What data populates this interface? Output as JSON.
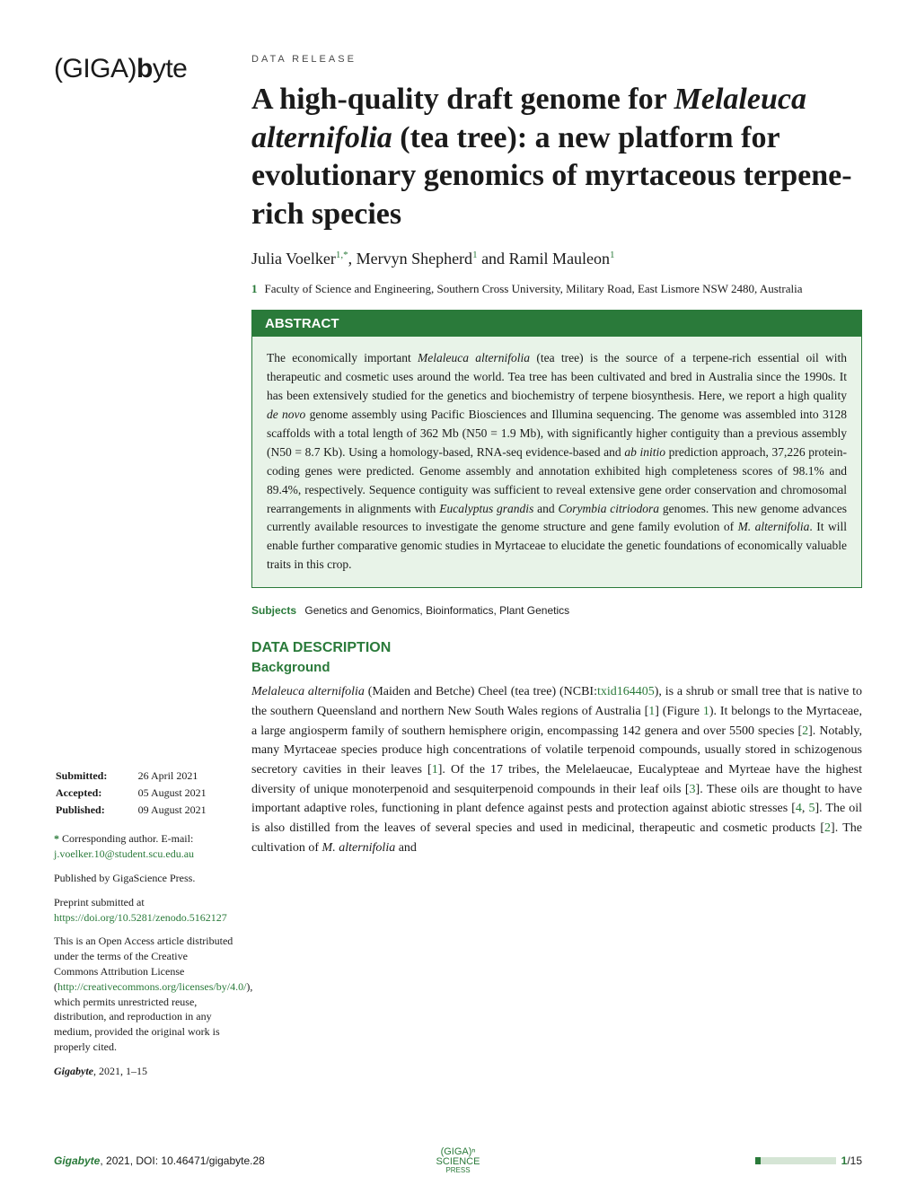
{
  "journal_logo": {
    "part1": "(GIGA)",
    "part2": "b",
    "part3": "yte"
  },
  "article_type": "DATA RELEASE",
  "title": {
    "line1": "A high-quality draft genome for ",
    "italic1": "Melaleuca alternifolia",
    "line1_end": " (tea tree): a new platform for evolutionary genomics of myrtaceous terpene-rich species"
  },
  "authors": {
    "a1": "Julia Voelker",
    "a1_sup": "1,*",
    "a2": "Mervyn Shepherd",
    "a2_sup": "1",
    "a3": "Ramil Mauleon",
    "a3_sup": "1"
  },
  "affiliation": {
    "num": "1",
    "text": "Faculty of Science and Engineering, Southern Cross University, Military Road, East Lismore NSW 2480, Australia"
  },
  "abstract": {
    "header": "ABSTRACT",
    "text_parts": [
      "The economically important ",
      "Melaleuca alternifolia",
      " (tea tree) is the source of a terpene-rich essential oil with therapeutic and cosmetic uses around the world. Tea tree has been cultivated and bred in Australia since the 1990s. It has been extensively studied for the genetics and biochemistry of terpene biosynthesis. Here, we report a high quality ",
      "de novo",
      " genome assembly using Pacific Biosciences and Illumina sequencing. The genome was assembled into 3128 scaffolds with a total length of 362 Mb (N50 = 1.9 Mb), with significantly higher contiguity than a previous assembly (N50 = 8.7 Kb). Using a homology-based, RNA-seq evidence-based and ",
      "ab initio",
      " prediction approach, 37,226 protein-coding genes were predicted. Genome assembly and annotation exhibited high completeness scores of 98.1% and 89.4%, respectively. Sequence contiguity was sufficient to reveal extensive gene order conservation and chromosomal rearrangements in alignments with ",
      "Eucalyptus grandis",
      " and ",
      "Corymbia citriodora",
      " genomes. This new genome advances currently available resources to investigate the genome structure and gene family evolution of ",
      "M. alternifolia",
      ". It will enable further comparative genomic studies in Myrtaceae to elucidate the genetic foundations of economically valuable traits in this crop."
    ]
  },
  "subjects": {
    "label": "Subjects",
    "value": "Genetics and Genomics, Bioinformatics, Plant Genetics"
  },
  "dates": {
    "submitted_label": "Submitted:",
    "submitted": "26 April 2021",
    "accepted_label": "Accepted:",
    "accepted": "05 August 2021",
    "published_label": "Published:",
    "published": "09 August 2021"
  },
  "corresponding": {
    "star": "*",
    "text": "Corresponding author. E-mail:",
    "email": "j.voelker.10@student.scu.edu.au"
  },
  "published_by": "Published by GigaScience Press.",
  "preprint": {
    "text": "Preprint submitted at ",
    "link": "https://doi.org/10.5281/zenodo.5162127"
  },
  "license": {
    "pre": "This is an Open Access article distributed under the terms of the Creative Commons Attribution License (",
    "link": "http://creativecommons.org/licenses/by/4.0/",
    "post": "), which permits unrestricted reuse, distribution, and reproduction in any medium, provided the original work is properly cited."
  },
  "citation": {
    "journal": "Gigabyte",
    "rest": ", 2021, 1–15"
  },
  "section1": "DATA DESCRIPTION",
  "subsection1": "Background",
  "body": {
    "parts": [
      "Melaleuca alternifolia",
      " (Maiden and Betche) Cheel (tea tree) (NCBI:",
      "txid164405",
      "), is a shrub or small tree that is native to the southern Queensland and northern New South Wales regions of Australia [",
      "1",
      "] (Figure ",
      "1",
      "). It belongs to the Myrtaceae, a large angiosperm family of southern hemisphere origin, encompassing 142 genera and over 5500 species [",
      "2",
      "]. Notably, many Myrtaceae species produce high concentrations of volatile terpenoid compounds, usually stored in schizogenous secretory cavities in their leaves [",
      "1",
      "]. Of the 17 tribes, the Melelaeucae, Eucalypteae and Myrteae have the highest diversity of unique monoterpenoid and sesquiterpenoid compounds in their leaf oils [",
      "3",
      "]. These oils are thought to have important adaptive roles, functioning in plant defence against pests and protection against abiotic stresses [",
      "4",
      ", ",
      "5",
      "]. The oil is also distilled from the leaves of several species and used in medicinal, therapeutic and cosmetic products [",
      "2",
      "]. The cultivation of ",
      "M. alternifolia",
      " and"
    ]
  },
  "footer": {
    "journal": "Gigabyte",
    "doi": ", 2021, DOI: 10.46471/gigabyte.28",
    "press_logo_line1": "(GIGA)ⁿ",
    "press_logo_line2": "SCIENCE",
    "press_logo_line3": "PRESS",
    "page": "1",
    "total": "/15"
  },
  "colors": {
    "accent": "#2a7a3a",
    "abstract_bg": "#e8f3e8",
    "progress_empty": "#d5e5d5",
    "text": "#1a1a1a"
  }
}
